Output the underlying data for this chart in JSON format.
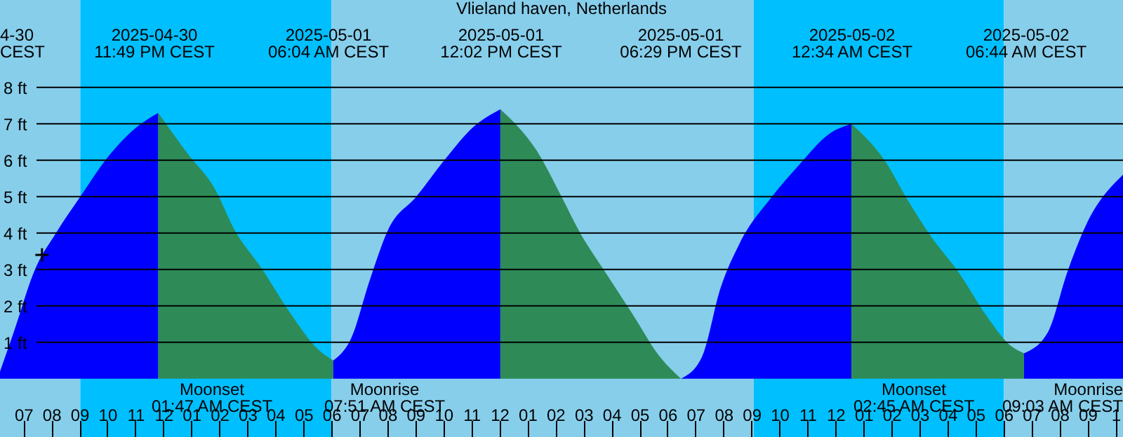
{
  "chart_data": {
    "type": "area",
    "title": "Vlieland haven, Netherlands",
    "series": [
      {
        "color": "#0000ff",
        "x": [
          "2025-04-30T18:10",
          "2025-04-30T18:40",
          "2025-04-30T19:25",
          "2025-04-30T20:10",
          "2025-04-30T21:02",
          "2025-04-30T22:02",
          "2025-04-30T23:02",
          "2025-04-30T23:49"
        ],
        "values": [
          0.2,
          1.3,
          3.0,
          4.0,
          5.0,
          6.1,
          6.9,
          7.3
        ]
      },
      {
        "color": "#2e8b57",
        "x": [
          "2025-04-30T23:49",
          "2025-05-01T00:51",
          "2025-05-01T01:51",
          "2025-05-01T02:32",
          "2025-05-01T03:32",
          "2025-05-01T04:32",
          "2025-05-01T05:32",
          "2025-05-01T06:04"
        ],
        "values": [
          7.3,
          6.2,
          5.2,
          4.1,
          3.0,
          1.8,
          0.8,
          0.5
        ]
      },
      {
        "color": "#0000ff",
        "x": [
          "2025-05-01T06:04",
          "2025-05-01T06:42",
          "2025-05-01T07:22",
          "2025-05-01T08:02",
          "2025-05-01T09:02",
          "2025-05-01T10:02",
          "2025-05-01T11:03",
          "2025-05-01T12:02"
        ],
        "values": [
          0.5,
          1.1,
          2.7,
          4.1,
          5.0,
          6.0,
          6.9,
          7.4
        ]
      },
      {
        "color": "#2e8b57",
        "x": [
          "2025-05-01T12:02",
          "2025-05-01T13:23",
          "2025-05-01T14:13",
          "2025-05-01T14:53",
          "2025-05-01T15:43",
          "2025-05-01T16:44",
          "2025-05-01T17:44",
          "2025-05-01T18:29"
        ],
        "values": [
          7.4,
          6.2,
          5.0,
          4.0,
          3.0,
          1.8,
          0.6,
          0.0
        ]
      },
      {
        "color": "#0000ff",
        "x": [
          "2025-05-01T18:29",
          "2025-05-01T19:14",
          "2025-05-01T19:54",
          "2025-05-01T20:34",
          "2025-05-01T21:44",
          "2025-05-01T22:44",
          "2025-05-01T23:44",
          "2025-05-02T00:34"
        ],
        "values": [
          0.0,
          0.6,
          2.5,
          3.7,
          5.0,
          5.9,
          6.7,
          7.0
        ]
      },
      {
        "color": "#2e8b57",
        "x": [
          "2025-05-02T00:34",
          "2025-05-02T01:45",
          "2025-05-02T02:35",
          "2025-05-02T03:25",
          "2025-05-02T04:25",
          "2025-05-02T05:25",
          "2025-05-02T06:16",
          "2025-05-02T06:44"
        ],
        "values": [
          7.0,
          6.0,
          4.9,
          3.9,
          2.9,
          1.7,
          0.9,
          0.7
        ]
      },
      {
        "color": "#0000ff",
        "x": [
          "2025-05-02T06:44",
          "2025-05-02T07:36",
          "2025-05-02T08:16",
          "2025-05-02T08:56",
          "2025-05-02T10:16"
        ],
        "values": [
          0.7,
          1.3,
          2.9,
          4.2,
          5.6
        ]
      },
      {
        "type": "scatter",
        "color": "#000000",
        "marker": "cross",
        "x": [
          "2025-04-30T19:40"
        ],
        "values": [
          3.4
        ]
      }
    ],
    "xlim": [
      "2025-04-30T18:10",
      "2025-05-02T10:16"
    ],
    "ylim": [
      -1.6,
      10.4
    ],
    "xticks": [
      {
        "value": "2025-04-30T19:00",
        "label": "07"
      },
      {
        "value": "2025-04-30T20:00",
        "label": "08"
      },
      {
        "value": "2025-04-30T21:00",
        "label": "09"
      },
      {
        "value": "2025-04-30T22:00",
        "label": "10"
      },
      {
        "value": "2025-04-30T23:00",
        "label": "11"
      },
      {
        "value": "2025-05-01T00:00",
        "label": "12"
      },
      {
        "value": "2025-05-01T01:00",
        "label": "01"
      },
      {
        "value": "2025-05-01T02:00",
        "label": "02"
      },
      {
        "value": "2025-05-01T03:00",
        "label": "03"
      },
      {
        "value": "2025-05-01T04:00",
        "label": "04"
      },
      {
        "value": "2025-05-01T05:00",
        "label": "05"
      },
      {
        "value": "2025-05-01T06:00",
        "label": "06"
      },
      {
        "value": "2025-05-01T07:00",
        "label": "07"
      },
      {
        "value": "2025-05-01T08:00",
        "label": "08"
      },
      {
        "value": "2025-05-01T09:00",
        "label": "09"
      },
      {
        "value": "2025-05-01T10:00",
        "label": "10"
      },
      {
        "value": "2025-05-01T11:00",
        "label": "11"
      },
      {
        "value": "2025-05-01T12:00",
        "label": "12"
      },
      {
        "value": "2025-05-01T13:00",
        "label": "01"
      },
      {
        "value": "2025-05-01T14:00",
        "label": "02"
      },
      {
        "value": "2025-05-01T15:00",
        "label": "03"
      },
      {
        "value": "2025-05-01T16:00",
        "label": "04"
      },
      {
        "value": "2025-05-01T17:00",
        "label": "05"
      },
      {
        "value": "2025-05-01T18:00",
        "label": "06"
      },
      {
        "value": "2025-05-01T19:00",
        "label": "07"
      },
      {
        "value": "2025-05-01T20:00",
        "label": "08"
      },
      {
        "value": "2025-05-01T21:00",
        "label": "09"
      },
      {
        "value": "2025-05-01T22:00",
        "label": "10"
      },
      {
        "value": "2025-05-01T23:00",
        "label": "11"
      },
      {
        "value": "2025-05-02T00:00",
        "label": "12"
      },
      {
        "value": "2025-05-02T01:00",
        "label": "01"
      },
      {
        "value": "2025-05-02T02:00",
        "label": "02"
      },
      {
        "value": "2025-05-02T03:00",
        "label": "03"
      },
      {
        "value": "2025-05-02T04:00",
        "label": "04"
      },
      {
        "value": "2025-05-02T05:00",
        "label": "05"
      },
      {
        "value": "2025-05-02T06:00",
        "label": "06"
      },
      {
        "value": "2025-05-02T07:00",
        "label": "07"
      },
      {
        "value": "2025-05-02T08:00",
        "label": "08"
      },
      {
        "value": "2025-05-02T09:00",
        "label": "09"
      },
      {
        "value": "2025-05-02T10:00",
        "label": "1"
      }
    ],
    "yticks": [
      {
        "value": 1,
        "label": "1 ft"
      },
      {
        "value": 2,
        "label": "2 ft"
      },
      {
        "value": 3,
        "label": "3 ft"
      },
      {
        "value": 4,
        "label": "4 ft"
      },
      {
        "value": 5,
        "label": "5 ft"
      },
      {
        "value": 6,
        "label": "6 ft"
      },
      {
        "value": 7,
        "label": "7 ft"
      },
      {
        "value": 8,
        "label": "8 ft"
      }
    ],
    "grid": "y",
    "bands": [
      {
        "axis": "x",
        "from": "2025-04-30T18:10",
        "to": "2025-04-30T21:02",
        "color": "#87ceeb"
      },
      {
        "axis": "x",
        "from": "2025-04-30T21:02",
        "to": "2025-05-01T06:00",
        "color": "#00bfff"
      },
      {
        "axis": "x",
        "from": "2025-05-01T06:00",
        "to": "2025-05-01T21:05",
        "color": "#87ceeb"
      },
      {
        "axis": "x",
        "from": "2025-05-01T21:05",
        "to": "2025-05-02T06:01",
        "color": "#00bfff"
      },
      {
        "axis": "x",
        "from": "2025-05-02T06:01",
        "to": "2025-05-02T10:16",
        "color": "#87ceeb"
      }
    ],
    "annotations": [
      "4-30\nCEST",
      "2025-04-30\n11:49 PM CEST",
      "2025-05-01\n06:04 AM CEST",
      "2025-05-01\n12:02 PM CEST",
      "2025-05-01\n06:29 PM CEST",
      "2025-05-02\n12:34 AM CEST",
      "2025-05-02\n06:44 AM CEST",
      "Moonset\n01:47 AM CEST",
      "Moonrise\n07:51 AM CEST",
      "Moonset\n02:45 AM CEST",
      "Moonrise\n09:03 AM CEST"
    ]
  }
}
